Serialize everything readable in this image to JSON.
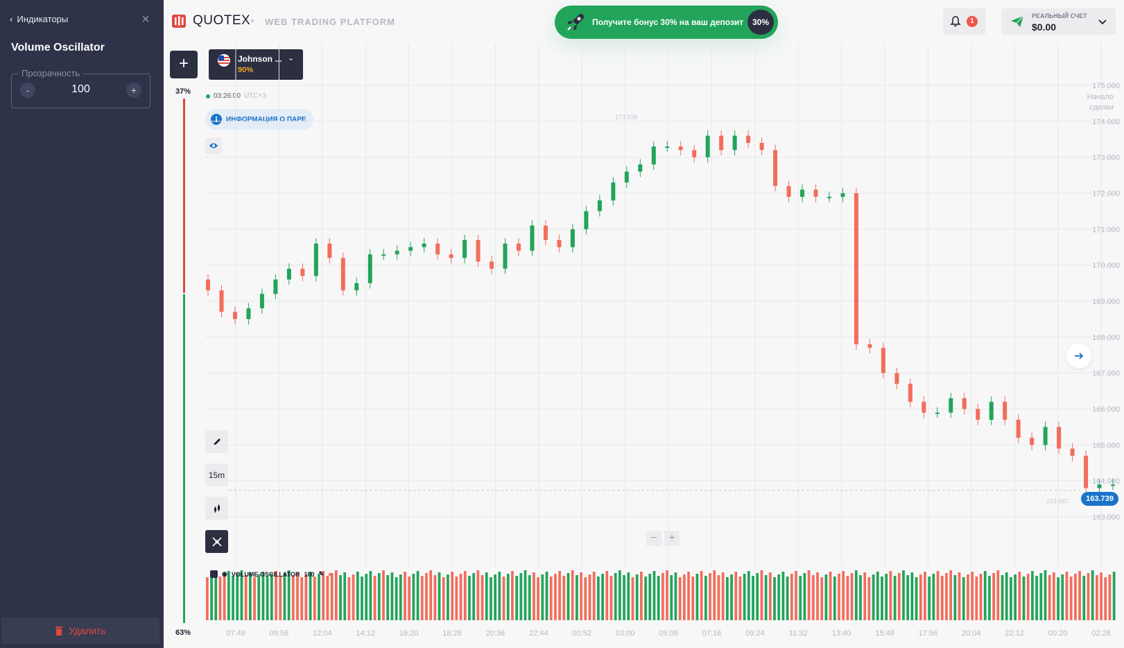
{
  "sidebar": {
    "back_label": "Индикаторы",
    "title": "Volume Oscillator",
    "opacity_label": "Прозрачность",
    "opacity_value": "100",
    "minus": "-",
    "plus": "+",
    "delete_label": "Удалить"
  },
  "header": {
    "logo": "QUOTEX",
    "platform": "WEB TRADING PLATFORM",
    "bonus_text": "Получите бонус 30% на ваш депозит",
    "bonus_badge": "30%",
    "notifications": "1",
    "account_label": "РЕАЛЬНЫЙ СЧЕТ",
    "account_balance": "$0.00"
  },
  "asset": {
    "name": "Johnson ...",
    "payout": "90%"
  },
  "time": {
    "clock": "03:26:00",
    "tz": "UTC+3"
  },
  "pair_info_label": "ИНФОРМАЦИЯ О ПАРЕ",
  "sentiment": {
    "top": "37%",
    "bottom": "63%"
  },
  "timeframe": "15m",
  "indicator": {
    "name": "VOLUME OSCILLATOR",
    "value": "100"
  },
  "colors": {
    "up": "#22a45a",
    "down": "#f26d5b",
    "accent": "#1a73c8"
  },
  "chart_data": {
    "type": "candlestick",
    "y_ticks": [
      "175.000",
      "174.000",
      "173.000",
      "172.000",
      "171.000",
      "170.000",
      "169.000",
      "168.000",
      "167.000",
      "166.000",
      "165.000",
      "164.000",
      "163.000"
    ],
    "x_ticks": [
      "07:48",
      "09:56",
      "12:04",
      "14:12",
      "16:20",
      "18:28",
      "20:36",
      "22:44",
      "00:52",
      "03:00",
      "05:08",
      "07:16",
      "09:24",
      "11:32",
      "13:40",
      "15:48",
      "17:56",
      "20:04",
      "22:12",
      "00:20",
      "02:28"
    ],
    "ylim": [
      162.7,
      175.2
    ],
    "current_price": "163.739",
    "high_label": "173.938",
    "low_label": "163.687",
    "start_label": "Начало сделки",
    "closes": [
      169.3,
      168.7,
      168.5,
      168.8,
      169.2,
      169.6,
      169.9,
      169.7,
      170.6,
      170.2,
      169.3,
      169.5,
      170.3,
      170.3,
      170.4,
      170.5,
      170.6,
      170.3,
      170.2,
      170.7,
      170.1,
      169.9,
      170.6,
      170.4,
      171.1,
      170.7,
      170.5,
      171.0,
      171.5,
      171.8,
      172.3,
      172.6,
      172.8,
      173.3,
      173.3,
      173.2,
      173.0,
      173.6,
      173.2,
      173.6,
      173.4,
      173.2,
      172.2,
      171.9,
      172.1,
      171.9,
      171.9,
      172.0,
      167.8,
      167.7,
      167.0,
      166.7,
      166.2,
      165.9,
      165.9,
      166.3,
      166.0,
      165.7,
      166.2,
      165.7,
      165.2,
      165.0,
      165.5,
      164.9,
      164.7,
      163.8,
      163.9,
      163.9
    ]
  }
}
